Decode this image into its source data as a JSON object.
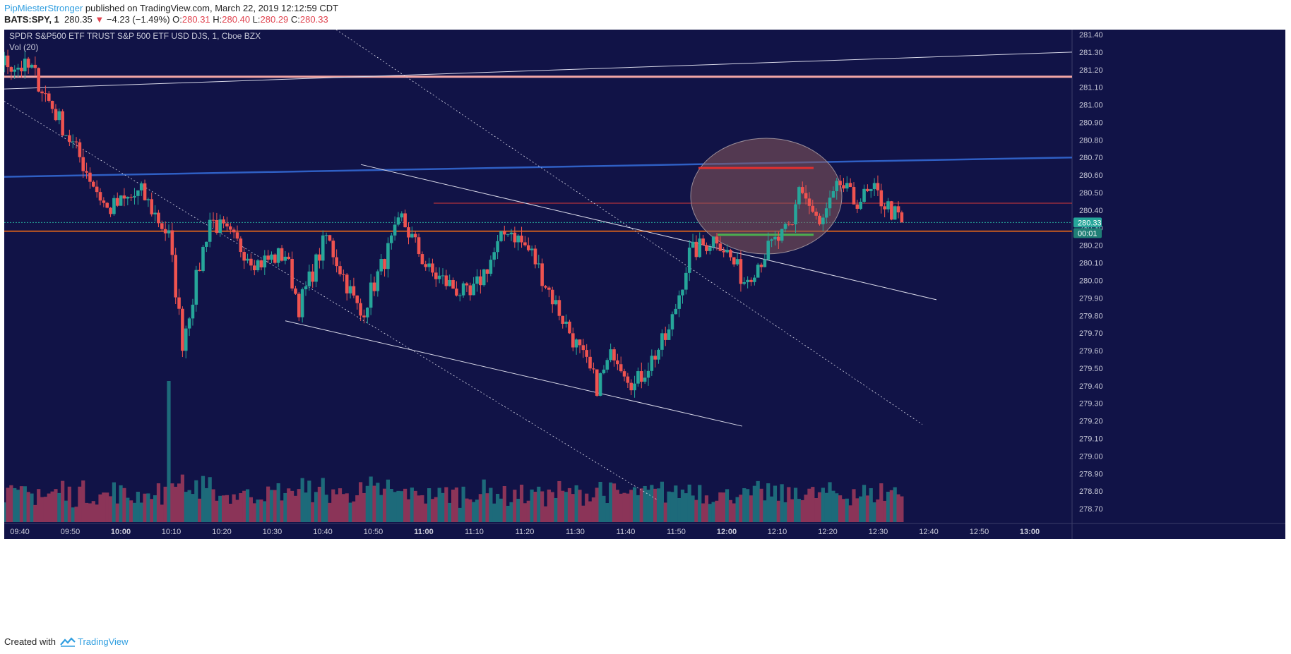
{
  "header": {
    "author": "PipMiesterStronger",
    "published": "published on TradingView.com, March 22, 2019 12:12:59 CDT",
    "symbol": "BATS:SPY, 1",
    "last": "280.35",
    "change": "−4.23 (−1.49%)",
    "o_label": "O:",
    "o": "280.31",
    "h_label": "H:",
    "h": "280.40",
    "l_label": "L:",
    "l": "280.29",
    "c_label": "C:",
    "c": "280.33"
  },
  "legend": {
    "title": "SPDR S&P500 ETF TRUST S&P 500 ETF USD DJS, 1, Cboe BZX",
    "volume": "Vol (20)"
  },
  "footer": {
    "created": "Created with",
    "brand": "TradingView"
  },
  "colors": {
    "background": "#111347",
    "up": "#26a69a",
    "down": "#ef5350",
    "vol_up": "#1d6a7a",
    "vol_down": "#8b3458",
    "resistance_pink": "#f4a7a7",
    "blue_channel": "#2f5fc4",
    "orange_line": "#c75b1f",
    "thin_red": "#d83a3a",
    "green_line": "#4caf50",
    "circle_fill": "#8a5a5a"
  },
  "chart_data": {
    "type": "candlestick",
    "y_axis": {
      "ticks": [
        "281.40",
        "281.30",
        "281.20",
        "281.10",
        "281.00",
        "280.90",
        "280.80",
        "280.70",
        "280.60",
        "280.50",
        "280.40",
        "280.30",
        "280.20",
        "280.10",
        "280.00",
        "279.90",
        "279.80",
        "279.70",
        "279.60",
        "279.50",
        "279.40",
        "279.30",
        "279.20",
        "279.10",
        "279.00",
        "278.90",
        "278.80",
        "278.70"
      ],
      "range": [
        278.64,
        281.42
      ]
    },
    "x_axis": {
      "ticks": [
        "09:40",
        "09:50",
        "10:00",
        "10:10",
        "10:20",
        "10:30",
        "10:40",
        "10:50",
        "11:00",
        "11:10",
        "11:20",
        "11:30",
        "11:40",
        "11:50",
        "12:00",
        "12:10",
        "12:20",
        "12:30",
        "12:40",
        "12:50",
        "13:00"
      ],
      "bold": [
        "10:00",
        "11:00",
        "12:00",
        "13:00"
      ]
    },
    "price_label": "280.33",
    "countdown_label": "00:01",
    "close_price": 280.33,
    "orange_level": 280.28,
    "pink_level": 281.16,
    "anchors": [
      [
        0,
        281.5
      ],
      [
        20,
        281.3
      ],
      [
        40,
        281.2
      ],
      [
        54,
        280.7
      ],
      [
        62,
        280.4
      ],
      [
        72,
        280.5
      ],
      [
        80,
        280.25
      ],
      [
        84,
        279.65
      ],
      [
        92,
        280.35
      ],
      [
        106,
        280.1
      ],
      [
        114,
        280.15
      ],
      [
        118,
        279.85
      ],
      [
        126,
        280.25
      ],
      [
        136,
        279.8
      ],
      [
        148,
        280.35
      ],
      [
        156,
        280.05
      ],
      [
        168,
        279.9
      ],
      [
        179,
        280.3
      ],
      [
        186,
        280.15
      ],
      [
        192,
        279.9
      ],
      [
        205,
        279.4
      ],
      [
        210,
        279.6
      ],
      [
        216,
        279.4
      ],
      [
        226,
        279.7
      ],
      [
        232,
        280.15
      ],
      [
        240,
        280.25
      ],
      [
        248,
        280.0
      ],
      [
        256,
        280.2
      ],
      [
        262,
        280.3
      ],
      [
        264,
        280.55
      ],
      [
        270,
        280.3
      ],
      [
        276,
        280.55
      ],
      [
        280,
        280.45
      ],
      [
        286,
        280.5
      ],
      [
        294,
        280.33
      ]
    ],
    "volume_spike_index": 80
  }
}
